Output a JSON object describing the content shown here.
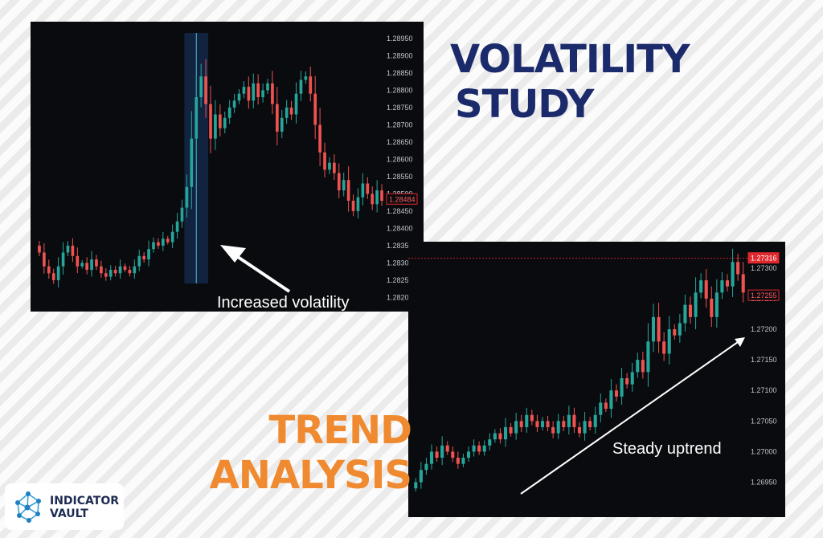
{
  "headlines": {
    "volatility": {
      "line1": "VOLATILITY",
      "line2": "STUDY",
      "color": "#1b2a6b"
    },
    "trend": {
      "line1": "TREND",
      "line2": "ANALYSIS",
      "color": "#f08a30"
    }
  },
  "logo": {
    "line1": "INDICATOR",
    "line2": "VAULT",
    "icon": "network-nodes-icon"
  },
  "colors": {
    "bull": "#26a69a",
    "bear": "#ef5350",
    "panel_bg": "#0a0b0f",
    "highlight": "#12233f"
  },
  "chart_data": [
    {
      "type": "candlestick",
      "yticks": [
        "1.28950",
        "1.28900",
        "1.28850",
        "1.28800",
        "1.28750",
        "1.28700",
        "1.28650",
        "1.28600",
        "1.28550",
        "1.28500",
        "1.28450",
        "1.28400",
        "1.28350",
        "1.2830",
        "1.2825",
        "1.2820"
      ],
      "ylim": [
        1.2818,
        1.2898
      ],
      "price_label": "1.28484",
      "price_label_value": 1.28484,
      "annotation": "Increased volatility",
      "closes": [
        1.2833,
        1.2829,
        1.2827,
        1.2825,
        1.2829,
        1.2833,
        1.2835,
        1.2832,
        1.2829,
        1.283,
        1.2828,
        1.2831,
        1.2829,
        1.2827,
        1.2826,
        1.2828,
        1.2827,
        1.2829,
        1.2828,
        1.2827,
        1.2829,
        1.2832,
        1.2831,
        1.2834,
        1.2836,
        1.2835,
        1.2837,
        1.2836,
        1.2839,
        1.2842,
        1.2846,
        1.2852,
        1.2866,
        1.2878,
        1.2884,
        1.2876,
        1.2866,
        1.2873,
        1.2869,
        1.2872,
        1.2875,
        1.2877,
        1.2879,
        1.2881,
        1.2877,
        1.2882,
        1.2878,
        1.288,
        1.2882,
        1.2876,
        1.2868,
        1.2872,
        1.2875,
        1.2873,
        1.2879,
        1.2883,
        1.2884,
        1.2879,
        1.287,
        1.2862,
        1.2857,
        1.2859,
        1.2856,
        1.2851,
        1.2854,
        1.2848,
        1.2845,
        1.2849,
        1.2853,
        1.285,
        1.2847,
        1.2851,
        1.2848
      ],
      "highlight_range": [
        31,
        35
      ],
      "marker_index": 33
    },
    {
      "type": "candlestick",
      "yticks": [
        "1.27300",
        "1.27250",
        "1.27200",
        "1.27150",
        "1.27100",
        "1.27050",
        "1.27000",
        "1.26950"
      ],
      "ylim": [
        1.2691,
        1.2733
      ],
      "price_label_top": "1.27316",
      "price_label_top_value": 1.27316,
      "price_label": "1.27255",
      "price_label_value": 1.27255,
      "annotation": "Steady uptrend",
      "closes": [
        1.2695,
        1.2697,
        1.2698,
        1.27,
        1.2699,
        1.2701,
        1.27,
        1.2699,
        1.2698,
        1.2699,
        1.27,
        1.2701,
        1.27,
        1.2701,
        1.2702,
        1.2703,
        1.2702,
        1.2704,
        1.2703,
        1.2705,
        1.2704,
        1.2706,
        1.2705,
        1.2704,
        1.2705,
        1.2704,
        1.2703,
        1.2705,
        1.2704,
        1.2706,
        1.2704,
        1.2703,
        1.2705,
        1.2704,
        1.2706,
        1.2708,
        1.2707,
        1.271,
        1.2709,
        1.2712,
        1.2711,
        1.2713,
        1.2715,
        1.2713,
        1.2718,
        1.2722,
        1.2718,
        1.2716,
        1.272,
        1.2719,
        1.2721,
        1.2724,
        1.2722,
        1.2726,
        1.2728,
        1.2725,
        1.2722,
        1.2726,
        1.2728,
        1.2727,
        1.2731,
        1.2729,
        1.2726
      ]
    }
  ]
}
